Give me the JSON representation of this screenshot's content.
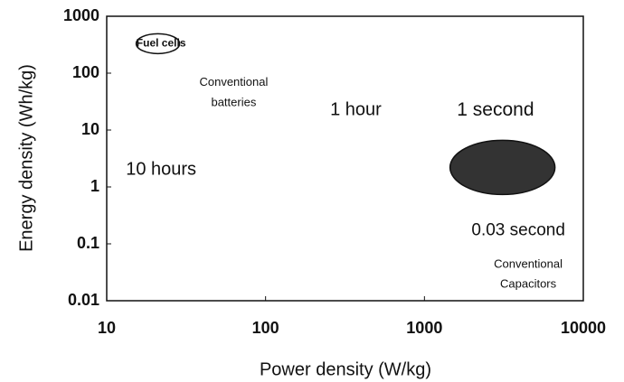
{
  "chart_data": {
    "type": "scatter",
    "xlabel": "Power density (W/kg)",
    "ylabel": "Energy density (Wh/kg)",
    "xscale": "log",
    "yscale": "log",
    "xlim": [
      10,
      10000
    ],
    "ylim": [
      0.01,
      1000
    ],
    "xticks": [
      10,
      100,
      1000,
      10000
    ],
    "yticks": [
      0.01,
      0.1,
      1,
      10,
      100,
      1000
    ],
    "regions": [
      {
        "x": 21,
        "y": 330,
        "color": "#ffffff"
      },
      {
        "x": 3100,
        "y": 2.2,
        "color": "#333333"
      }
    ],
    "annotations": [
      {
        "lines": [
          "Fuel cells"
        ],
        "x": 22,
        "y": 330
      },
      {
        "lines": [
          "Conventional",
          "batteries"
        ],
        "x": 63,
        "y": 45
      },
      {
        "lines": [
          "1 hour"
        ],
        "x": 370,
        "y": 22
      },
      {
        "lines": [
          "1 second"
        ],
        "x": 2800,
        "y": 22
      },
      {
        "lines": [
          "10 hours"
        ],
        "x": 22,
        "y": 2
      },
      {
        "lines": [
          "0.03 second"
        ],
        "x": 3900,
        "y": 0.17
      },
      {
        "lines": [
          "Conventional",
          "Capacitors"
        ],
        "x": 4500,
        "y": 0.029
      }
    ]
  }
}
